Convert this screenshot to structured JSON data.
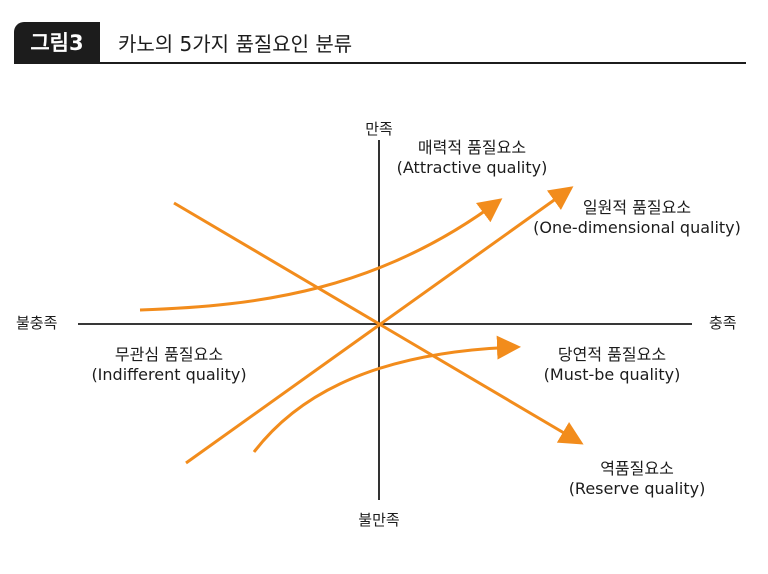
{
  "header": {
    "badge": "그림3",
    "title": "카노의 5가지 품질요인 분류"
  },
  "axes": {
    "top": "만족",
    "bottom": "불만족",
    "left": "불충족",
    "right": "충족"
  },
  "categories": {
    "attractive": {
      "ko": "매력적 품질요소",
      "en": "(Attractive quality)"
    },
    "one_dimensional": {
      "ko": "일원적 품질요소",
      "en": "(One-dimensional quality)"
    },
    "must_be": {
      "ko": "당연적 품질요소",
      "en": "(Must-be quality)"
    },
    "indifferent": {
      "ko": "무관심 품질요소",
      "en": "(Indifferent quality)"
    },
    "reverse": {
      "ko": "역품질요소",
      "en": "(Reserve quality)"
    }
  },
  "colors": {
    "arrow": "#f28c1c",
    "axis": "#1c1c1c",
    "badge_bg": "#1c1c1c"
  }
}
